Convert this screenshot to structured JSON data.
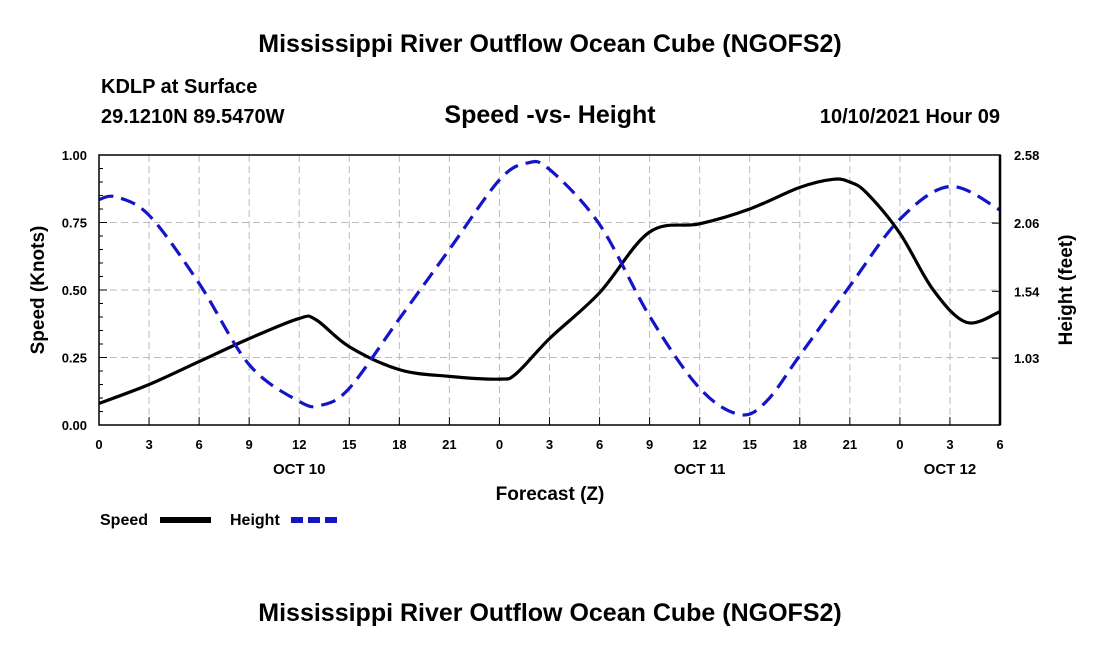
{
  "header": {
    "title": "Mississippi River Outflow Ocean Cube (NGOFS2)",
    "station": "KDLP at Surface",
    "coords": "29.1210N  89.5470W",
    "subtitle": "Speed -vs- Height",
    "datetime": "10/10/2021 Hour 09"
  },
  "footer": {
    "title": "Mississippi River Outflow Ocean Cube (NGOFS2)"
  },
  "colors": {
    "speed": "#000000",
    "height": "#1414c8",
    "grid": "#bbbbbb"
  },
  "chart_data": {
    "type": "line",
    "title": "Speed -vs- Height",
    "xlabel": "Forecast (Z)",
    "ylabel": "Speed (Knots)",
    "y2label": "Height (feet)",
    "xlim": [
      0,
      54
    ],
    "ylim": [
      0,
      1
    ],
    "y2lim": [
      0.52,
      2.58
    ],
    "x_ticks": [
      0,
      3,
      6,
      9,
      12,
      15,
      18,
      21,
      24,
      27,
      30,
      33,
      36,
      39,
      42,
      45,
      48,
      51,
      54
    ],
    "x_tick_labels": [
      "0",
      "3",
      "6",
      "9",
      "12",
      "15",
      "18",
      "21",
      "0",
      "3",
      "6",
      "9",
      "12",
      "15",
      "18",
      "21",
      "0",
      "3",
      "6"
    ],
    "day_labels": [
      {
        "x": 12,
        "label": "OCT 10"
      },
      {
        "x": 36,
        "label": "OCT 11"
      },
      {
        "x": 51,
        "label": "OCT 12"
      }
    ],
    "y_ticks": [
      0,
      0.25,
      0.5,
      0.75,
      1.0
    ],
    "y_tick_labels": [
      "0.00",
      "0.25",
      "0.50",
      "0.75",
      "1.00"
    ],
    "y2_ticks": [
      1.03,
      1.54,
      2.06,
      2.58
    ],
    "y2_tick_labels": [
      "1.03",
      "1.54",
      "2.06",
      "2.58"
    ],
    "grid": true,
    "series": [
      {
        "name": "Speed",
        "axis": "left",
        "style": "solid",
        "x": [
          0,
          3,
          6,
          9,
          12,
          13,
          15,
          18,
          21,
          24,
          25,
          27,
          30,
          33,
          36,
          39,
          42,
          44,
          45,
          46,
          48,
          50,
          52,
          54
        ],
        "values": [
          0.08,
          0.15,
          0.235,
          0.32,
          0.395,
          0.39,
          0.29,
          0.205,
          0.18,
          0.17,
          0.19,
          0.32,
          0.49,
          0.715,
          0.745,
          0.8,
          0.88,
          0.91,
          0.9,
          0.86,
          0.71,
          0.5,
          0.38,
          0.42
        ]
      },
      {
        "name": "Height",
        "axis": "right",
        "style": "dashed",
        "x": [
          0,
          1,
          3,
          6,
          9,
          12,
          13.3,
          15,
          18,
          21,
          24,
          25.7,
          27,
          30,
          33,
          36,
          38.4,
          40,
          42,
          45,
          48,
          51,
          54
        ],
        "values": [
          2.24,
          2.26,
          2.12,
          1.6,
          0.98,
          0.7,
          0.67,
          0.8,
          1.33,
          1.86,
          2.39,
          2.52,
          2.47,
          2.05,
          1.35,
          0.8,
          0.6,
          0.7,
          1.05,
          1.58,
          2.09,
          2.34,
          2.16
        ]
      }
    ],
    "legend": {
      "position": "bottom-left",
      "entries": [
        {
          "label": "Speed",
          "style": "solid"
        },
        {
          "label": "Height",
          "style": "dashed"
        }
      ]
    }
  }
}
